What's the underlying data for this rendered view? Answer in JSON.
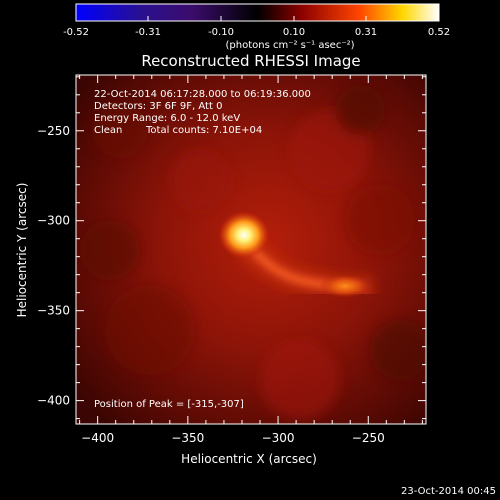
{
  "colorbar": {
    "range": [
      -0.52,
      0.52
    ],
    "tick_labels": [
      "-0.52",
      "-0.31",
      "-0.10",
      "0.10",
      "0.31",
      "0.52"
    ],
    "units_label": "(photons cm⁻² s⁻¹ asec⁻²)",
    "colors": [
      "#0000ff",
      "#3b0c6b",
      "#000000",
      "#8b0000",
      "#ff4500",
      "#ffd700",
      "#ffffff"
    ]
  },
  "title": "Reconstructed RHESSI Image",
  "info": {
    "time_range": "22-Oct-2014 06:17:28.000 to 06:19:36.000",
    "detectors": "Detectors: 3F 6F 9F, Att 0",
    "energy_range": "Energy Range: 6.0 - 12.0 keV",
    "algorithm": "Clean",
    "total_counts": "Total counts: 7.10E+04",
    "peak_position": "Position of Peak = [-315,-307]"
  },
  "axes": {
    "xlabel": "Heliocentric X (arcsec)",
    "ylabel": "Heliocentric Y (arcsec)",
    "xlim": [
      -412,
      -218
    ],
    "ylim": [
      -413,
      -219
    ],
    "x_ticks": [
      -400,
      -350,
      -300,
      -250
    ],
    "y_ticks": [
      -250,
      -300,
      -350,
      -400
    ]
  },
  "footer": {
    "date": "23-Oct-2014 00:45"
  }
}
